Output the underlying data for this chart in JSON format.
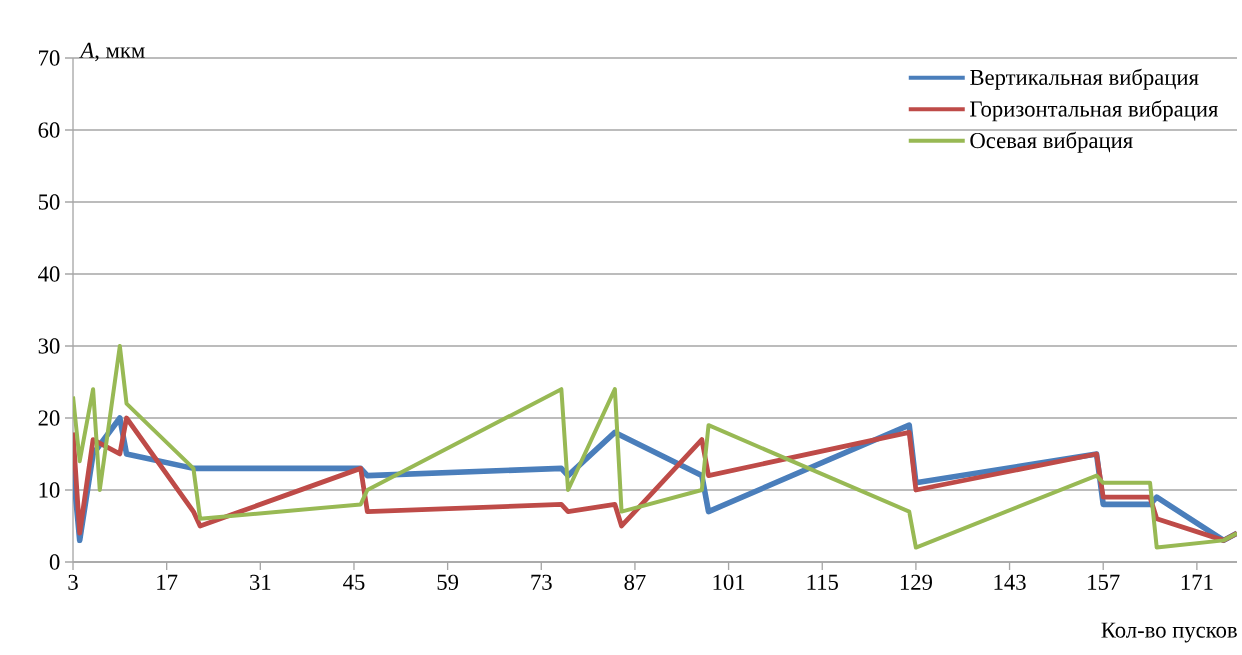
{
  "chart_data": {
    "type": "line",
    "ylabel": "*A*, мкм",
    "xlabel": "Кол-во пусков",
    "xlim": [
      3,
      177
    ],
    "xticks": [
      3,
      17,
      31,
      45,
      59,
      73,
      87,
      101,
      115,
      129,
      143,
      157,
      171
    ],
    "ylim": [
      0,
      70
    ],
    "yticks": [
      0,
      10,
      20,
      30,
      40,
      50,
      60,
      70
    ],
    "grid": "y",
    "legend": "top right",
    "marker": "none",
    "line_style": "solid",
    "series": [
      {
        "name": "Вертикальная вибрация",
        "color": "#4a7ebb",
        "x": [
          3,
          4,
          6,
          10,
          11,
          21,
          46,
          47,
          76,
          77,
          84,
          97,
          98,
          128,
          129,
          156,
          157,
          164,
          165,
          175,
          177
        ],
        "values": [
          13,
          3,
          15,
          20,
          15,
          13,
          13,
          12,
          13,
          12,
          18,
          12,
          7,
          19,
          11,
          15,
          8,
          8,
          9,
          3,
          4
        ]
      },
      {
        "name": "Горизонтальная вибрация",
        "color": "#be4b48",
        "x": [
          3,
          4,
          6,
          10,
          11,
          21,
          22,
          46,
          47,
          76,
          77,
          84,
          85,
          97,
          98,
          128,
          129,
          156,
          157,
          164,
          165,
          175,
          177
        ],
        "values": [
          18,
          4,
          17,
          15,
          20,
          7,
          5,
          13,
          7,
          8,
          7,
          8,
          5,
          17,
          12,
          18,
          10,
          15,
          9,
          9,
          6,
          3,
          4
        ]
      },
      {
        "name": "Осевая вибрация",
        "color": "#98b954",
        "x": [
          3,
          4,
          6,
          7,
          10,
          11,
          21,
          22,
          46,
          47,
          76,
          77,
          84,
          85,
          97,
          98,
          128,
          129,
          156,
          157,
          164,
          165,
          175,
          177
        ],
        "values": [
          23,
          14,
          24,
          10,
          30,
          22,
          13,
          6,
          8,
          10,
          24,
          10,
          24,
          7,
          10,
          19,
          7,
          2,
          12,
          11,
          11,
          2,
          3,
          4
        ]
      }
    ]
  }
}
